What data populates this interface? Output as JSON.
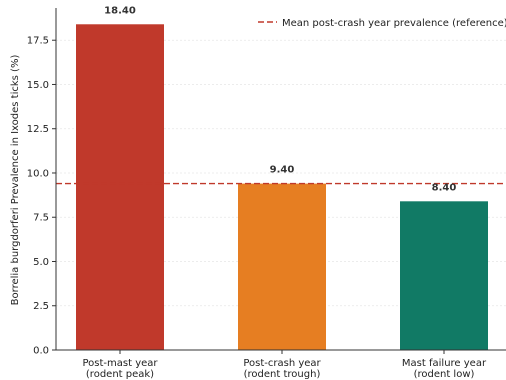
{
  "chart_data": {
    "type": "bar",
    "categories": [
      [
        "Post-mast year",
        "(rodent peak)"
      ],
      [
        "Post-crash year",
        "(rodent trough)"
      ],
      [
        "Mast failure year",
        "(rodent low)"
      ]
    ],
    "values": [
      18.4,
      9.4,
      8.4
    ],
    "value_labels": [
      "18.40",
      "9.40",
      "8.40"
    ],
    "bar_colors": [
      "#c0392b",
      "#e67e22",
      "#117a65"
    ],
    "ylabel": "Borrelia burgdorferi Prevalence in Ixodes ticks (%)",
    "xlabel": "",
    "ylim": [
      0,
      19.32
    ],
    "yticks": [
      0,
      2.5,
      5,
      7.5,
      10,
      12.5,
      15,
      17.5
    ],
    "ytick_labels": [
      "0.0",
      "2.5",
      "5.0",
      "7.5",
      "10.0",
      "12.5",
      "15.0",
      "17.5"
    ],
    "grid": "horizontal",
    "reference_line": {
      "value": 9.4,
      "label": "Mean post-crash year prevalence (reference)",
      "color": "#c0392b",
      "style": "dashed"
    },
    "legend": {
      "placement": "top-right"
    }
  }
}
